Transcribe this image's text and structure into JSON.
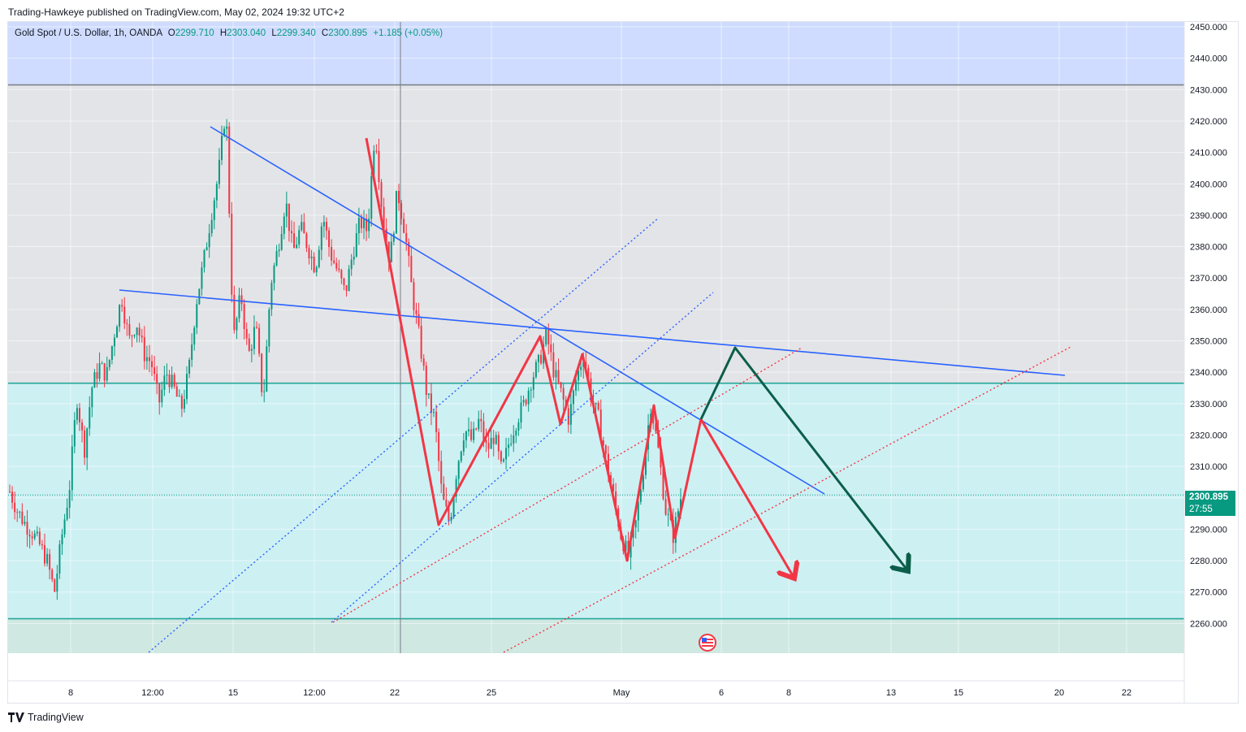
{
  "publisher_line": "Trading-Hawkeye published on TradingView.com, May 02, 2024 19:32 UTC+2",
  "brand": "TradingView",
  "legend": {
    "symbol": "Gold Spot / U.S. Dollar, 1h, OANDA",
    "open_label": "O",
    "open": "2299.710",
    "high_label": "H",
    "high": "2303.040",
    "low_label": "L",
    "low": "2299.340",
    "close_label": "C",
    "close": "2300.895",
    "change": "+1.185 (+0.05%)"
  },
  "price_tag": {
    "price": "2300.895",
    "countdown": "27:55"
  },
  "colors": {
    "up": "#089981",
    "down": "#f23645",
    "zone_top": "#cfdcff",
    "zone_mid": "#e3e4e7",
    "zone_low": "#cdf0f3",
    "trendline": "#2962ff",
    "pattern": "#f23645",
    "projection_green": "#0b5e4a"
  },
  "chart_data": {
    "type": "candlestick",
    "instrument": "Gold Spot / U.S. Dollar",
    "timeframe": "1h",
    "y_ticks": [
      "2450.000",
      "2440.000",
      "2430.000",
      "2420.000",
      "2410.000",
      "2400.000",
      "2390.000",
      "2380.000",
      "2370.000",
      "2360.000",
      "2350.000",
      "2340.000",
      "2330.000",
      "2320.000",
      "2310.000",
      "2300.000",
      "2290.000",
      "2280.000",
      "2270.000",
      "2260.000"
    ],
    "ylim": [
      2249,
      2452
    ],
    "x_ticks": [
      "8",
      "12:00",
      "15",
      "12:00",
      "22",
      "25",
      "May",
      "6",
      "8",
      "13",
      "15",
      "20",
      "22"
    ],
    "last_price": 2300.895,
    "zones": [
      {
        "from": 2431.5,
        "to": 2452,
        "color": "#cfdcff"
      },
      {
        "from": 2336.5,
        "to": 2431.5,
        "color": "#e3e4e7"
      },
      {
        "from": 2261.5,
        "to": 2336.5,
        "color": "#cdf0f3"
      },
      {
        "from": 2249,
        "to": 2261.5,
        "color": "#cfe8e2"
      }
    ],
    "horizontal_levels": [
      2431.5,
      2336.5,
      2261.5
    ],
    "price_path": [
      [
        0,
        2302
      ],
      [
        4,
        2296
      ],
      [
        8,
        2292
      ],
      [
        12,
        2289
      ],
      [
        16,
        2285
      ],
      [
        20,
        2280
      ],
      [
        24,
        2270
      ],
      [
        28,
        2288
      ],
      [
        32,
        2303
      ],
      [
        36,
        2332
      ],
      [
        40,
        2315
      ],
      [
        44,
        2335
      ],
      [
        48,
        2342
      ],
      [
        52,
        2339
      ],
      [
        56,
        2352
      ],
      [
        60,
        2364
      ],
      [
        64,
        2350
      ],
      [
        68,
        2356
      ],
      [
        72,
        2346
      ],
      [
        76,
        2343
      ],
      [
        80,
        2330
      ],
      [
        84,
        2340
      ],
      [
        88,
        2335
      ],
      [
        92,
        2328
      ],
      [
        96,
        2340
      ],
      [
        100,
        2362
      ],
      [
        104,
        2375
      ],
      [
        108,
        2390
      ],
      [
        112,
        2403
      ],
      [
        116,
        2425
      ],
      [
        120,
        2350
      ],
      [
        124,
        2365
      ],
      [
        128,
        2345
      ],
      [
        132,
        2355
      ],
      [
        136,
        2330
      ],
      [
        140,
        2368
      ],
      [
        144,
        2380
      ],
      [
        148,
        2395
      ],
      [
        152,
        2378
      ],
      [
        156,
        2386
      ],
      [
        160,
        2380
      ],
      [
        164,
        2373
      ],
      [
        168,
        2390
      ],
      [
        172,
        2378
      ],
      [
        176,
        2372
      ],
      [
        180,
        2365
      ],
      [
        184,
        2378
      ],
      [
        188,
        2388
      ],
      [
        192,
        2385
      ],
      [
        196,
        2418
      ],
      [
        200,
        2390
      ],
      [
        204,
        2375
      ],
      [
        208,
        2398
      ],
      [
        212,
        2385
      ],
      [
        216,
        2365
      ],
      [
        220,
        2350
      ],
      [
        224,
        2332
      ],
      [
        228,
        2325
      ],
      [
        232,
        2300
      ],
      [
        236,
        2292
      ],
      [
        240,
        2310
      ],
      [
        244,
        2322
      ],
      [
        248,
        2318
      ],
      [
        252,
        2325
      ],
      [
        256,
        2315
      ],
      [
        260,
        2320
      ],
      [
        264,
        2308
      ],
      [
        268,
        2318
      ],
      [
        272,
        2325
      ],
      [
        276,
        2330
      ],
      [
        280,
        2338
      ],
      [
        284,
        2343
      ],
      [
        288,
        2352
      ],
      [
        292,
        2340
      ],
      [
        296,
        2333
      ],
      [
        300,
        2325
      ],
      [
        304,
        2338
      ],
      [
        308,
        2346
      ],
      [
        312,
        2332
      ],
      [
        316,
        2325
      ],
      [
        320,
        2312
      ],
      [
        324,
        2300
      ],
      [
        328,
        2288
      ],
      [
        332,
        2281
      ],
      [
        336,
        2292
      ],
      [
        340,
        2310
      ],
      [
        344,
        2330
      ],
      [
        348,
        2315
      ],
      [
        352,
        2296
      ],
      [
        356,
        2288
      ],
      [
        360,
        2300
      ]
    ],
    "trendlines": [
      {
        "name": "",
        "points": [
          [
            259,
            156
          ],
          [
            1015,
            608
          ]
        ],
        "style": "solid"
      },
      {
        "name": "",
        "points": [
          [
            147,
            357
          ],
          [
            1311,
            462
          ]
        ],
        "style": "solid"
      },
      {
        "name": "",
        "points": [
          [
            183,
            803
          ],
          [
            811,
            268
          ]
        ],
        "style": "dotted-blue"
      },
      {
        "name": "",
        "points": [
          [
            408,
            766
          ],
          [
            878,
            360
          ]
        ],
        "style": "dotted-blue"
      },
      {
        "name": "",
        "points": [
          [
            410,
            766
          ],
          [
            987,
            428
          ]
        ],
        "style": "dotted-red"
      },
      {
        "name": "",
        "points": [
          [
            620,
            803
          ],
          [
            1320,
            426
          ]
        ],
        "style": "dotted-red"
      }
    ],
    "zigzag_red": [
      [
        451,
        170
      ],
      [
        540,
        646
      ],
      [
        665,
        414
      ],
      [
        690,
        522
      ],
      [
        717,
        436
      ],
      [
        772,
        690
      ],
      [
        805,
        499
      ],
      [
        831,
        662
      ],
      [
        863,
        516
      ]
    ],
    "projection_red": [
      [
        863,
        516
      ],
      [
        978,
        712
      ]
    ],
    "projection_green": [
      [
        863,
        516
      ],
      [
        905,
        428
      ],
      [
        1118,
        703
      ]
    ],
    "vertical_marker_x": 493
  }
}
